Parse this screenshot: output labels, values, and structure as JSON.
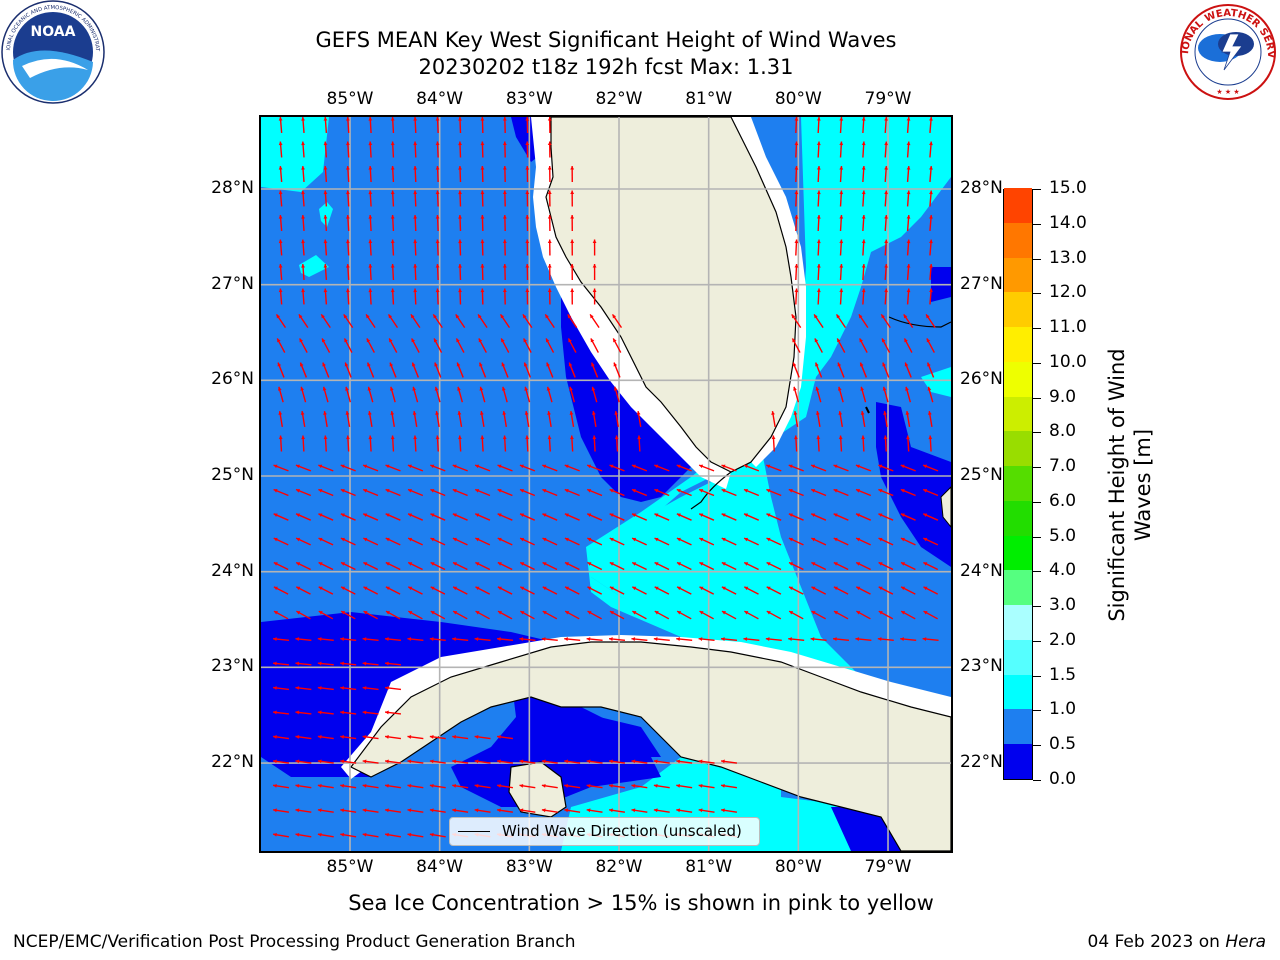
{
  "title": {
    "line1": "GEFS MEAN Key West Significant Height of Wind Waves",
    "line2": "20230202 t18z 192h fcst   Max: 1.31"
  },
  "map": {
    "lon_labels": [
      "85°W",
      "84°W",
      "83°W",
      "82°W",
      "81°W",
      "80°W",
      "79°W"
    ],
    "lat_labels": [
      "28°N",
      "27°N",
      "26°N",
      "25°N",
      "24°N",
      "23°N",
      "22°N"
    ],
    "lon_values": [
      -85,
      -84,
      -83,
      -82,
      -81,
      -80,
      -79
    ],
    "lat_values": [
      28,
      27,
      26,
      25,
      24,
      23,
      22
    ],
    "extent": {
      "lon_min": -86.0,
      "lon_max": -78.3,
      "lat_min": 21.0,
      "lat_max": 28.75
    },
    "legend": {
      "label": "Wind Wave Direction (unscaled)"
    },
    "colors": {
      "ocean_0_0.5": "#0000ee",
      "ocean_0.5_1.0": "#1e7ff0",
      "ocean_1.0_1.5": "#00ffff",
      "land": "#eeeedc",
      "coast_no_data": "#ffffff",
      "arrow": "#ff0000"
    }
  },
  "colorbar": {
    "label": "Significant Height of Wind Waves [m]",
    "label_line1": "Significant Height of Wind",
    "label_line2": "Waves [m]",
    "ticks": [
      "0.0",
      "0.5",
      "1.0",
      "1.5",
      "2.0",
      "3.0",
      "4.0",
      "5.0",
      "6.0",
      "7.0",
      "8.0",
      "9.0",
      "10.0",
      "11.0",
      "12.0",
      "13.0",
      "14.0",
      "15.0"
    ],
    "colors": [
      "#0000ee",
      "#1e7ff0",
      "#00ffff",
      "#55ffff",
      "#aaffff",
      "#55ff80",
      "#00ee00",
      "#22dd00",
      "#55dd00",
      "#99dd00",
      "#ccee00",
      "#eeff00",
      "#ffee00",
      "#ffcc00",
      "#ff9900",
      "#ff7700",
      "#ff4400",
      "#ff1100"
    ]
  },
  "subtitle": "Sea Ice Concentration > 15% is shown in pink to yellow",
  "footer": {
    "left": "NCEP/EMC/Verification Post Processing Product Generation Branch",
    "right_date": "04 Feb 2023 on ",
    "right_host": "Hera"
  },
  "logos": {
    "noaa_text": "NOAA",
    "noaa_ring": "NATIONAL OCEANIC AND ATMOSPHERIC ADMINISTRATION",
    "noaa_ring_bottom": "U.S. DEPARTMENT OF COMMERCE",
    "nws_ring": "NATIONAL WEATHER SERVICE"
  }
}
